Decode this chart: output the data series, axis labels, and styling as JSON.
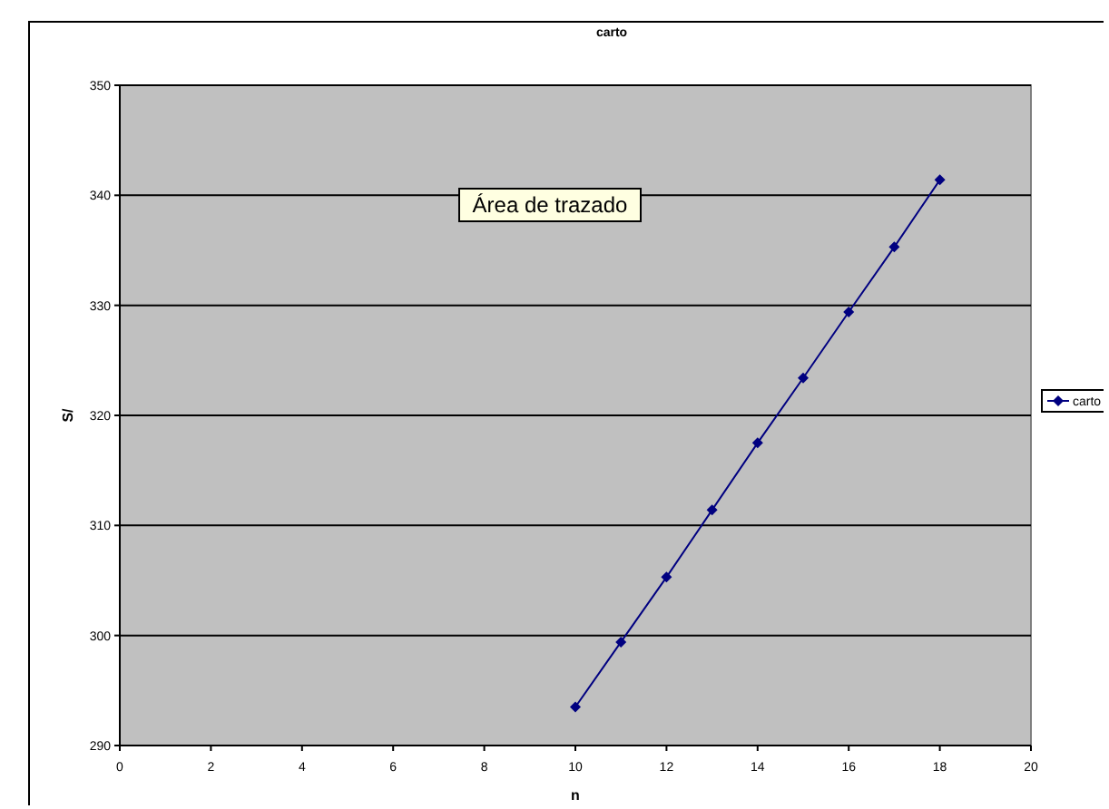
{
  "chart_data": {
    "type": "line",
    "title": "carto",
    "xlabel": "n",
    "ylabel": "S/",
    "x": [
      10,
      11,
      12,
      13,
      14,
      15,
      16,
      17,
      18
    ],
    "series": [
      {
        "name": "carto",
        "color": "#000080",
        "values": [
          293.5,
          299.4,
          305.3,
          311.4,
          317.5,
          323.4,
          329.4,
          335.3,
          341.4
        ]
      }
    ],
    "xlim": [
      0,
      20
    ],
    "xticks": [
      0,
      2,
      4,
      6,
      8,
      10,
      12,
      14,
      16,
      18,
      20
    ],
    "ylim": [
      290,
      350
    ],
    "yticks": [
      290,
      300,
      310,
      320,
      330,
      340,
      350
    ],
    "grid": "y",
    "legend": "right",
    "marker": "diamond",
    "line_style": "solid",
    "annotations": [
      "Área de trazado"
    ]
  }
}
